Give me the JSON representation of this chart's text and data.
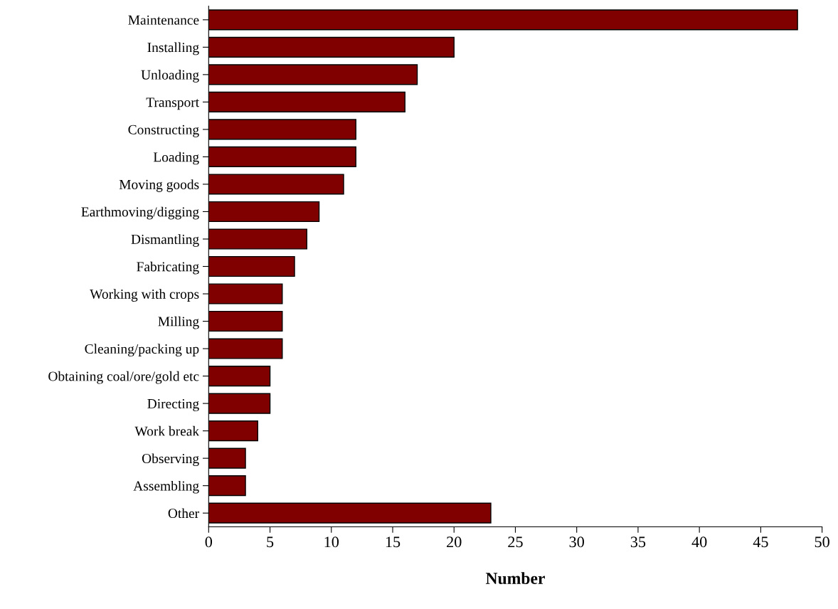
{
  "chart_data": {
    "type": "bar",
    "orientation": "horizontal",
    "xlabel": "Number",
    "categories": [
      "Maintenance",
      "Installing",
      "Unloading",
      "Transport",
      "Constructing",
      "Loading",
      "Moving goods",
      "Earthmoving/digging",
      "Dismantling",
      "Fabricating",
      "Working with crops",
      "Milling",
      "Cleaning/packing up",
      "Obtaining coal/ore/gold etc",
      "Directing",
      "Work break",
      "Observing",
      "Assembling",
      "Other"
    ],
    "values": [
      48,
      20,
      17,
      16,
      12,
      12,
      11,
      9,
      8,
      7,
      6,
      6,
      6,
      5,
      5,
      4,
      3,
      3,
      23
    ],
    "color": "#800000",
    "xlim": [
      0,
      50
    ],
    "xticks": [
      0,
      5,
      10,
      15,
      20,
      25,
      30,
      35,
      40,
      45,
      50
    ],
    "grid": false,
    "legend": false
  }
}
